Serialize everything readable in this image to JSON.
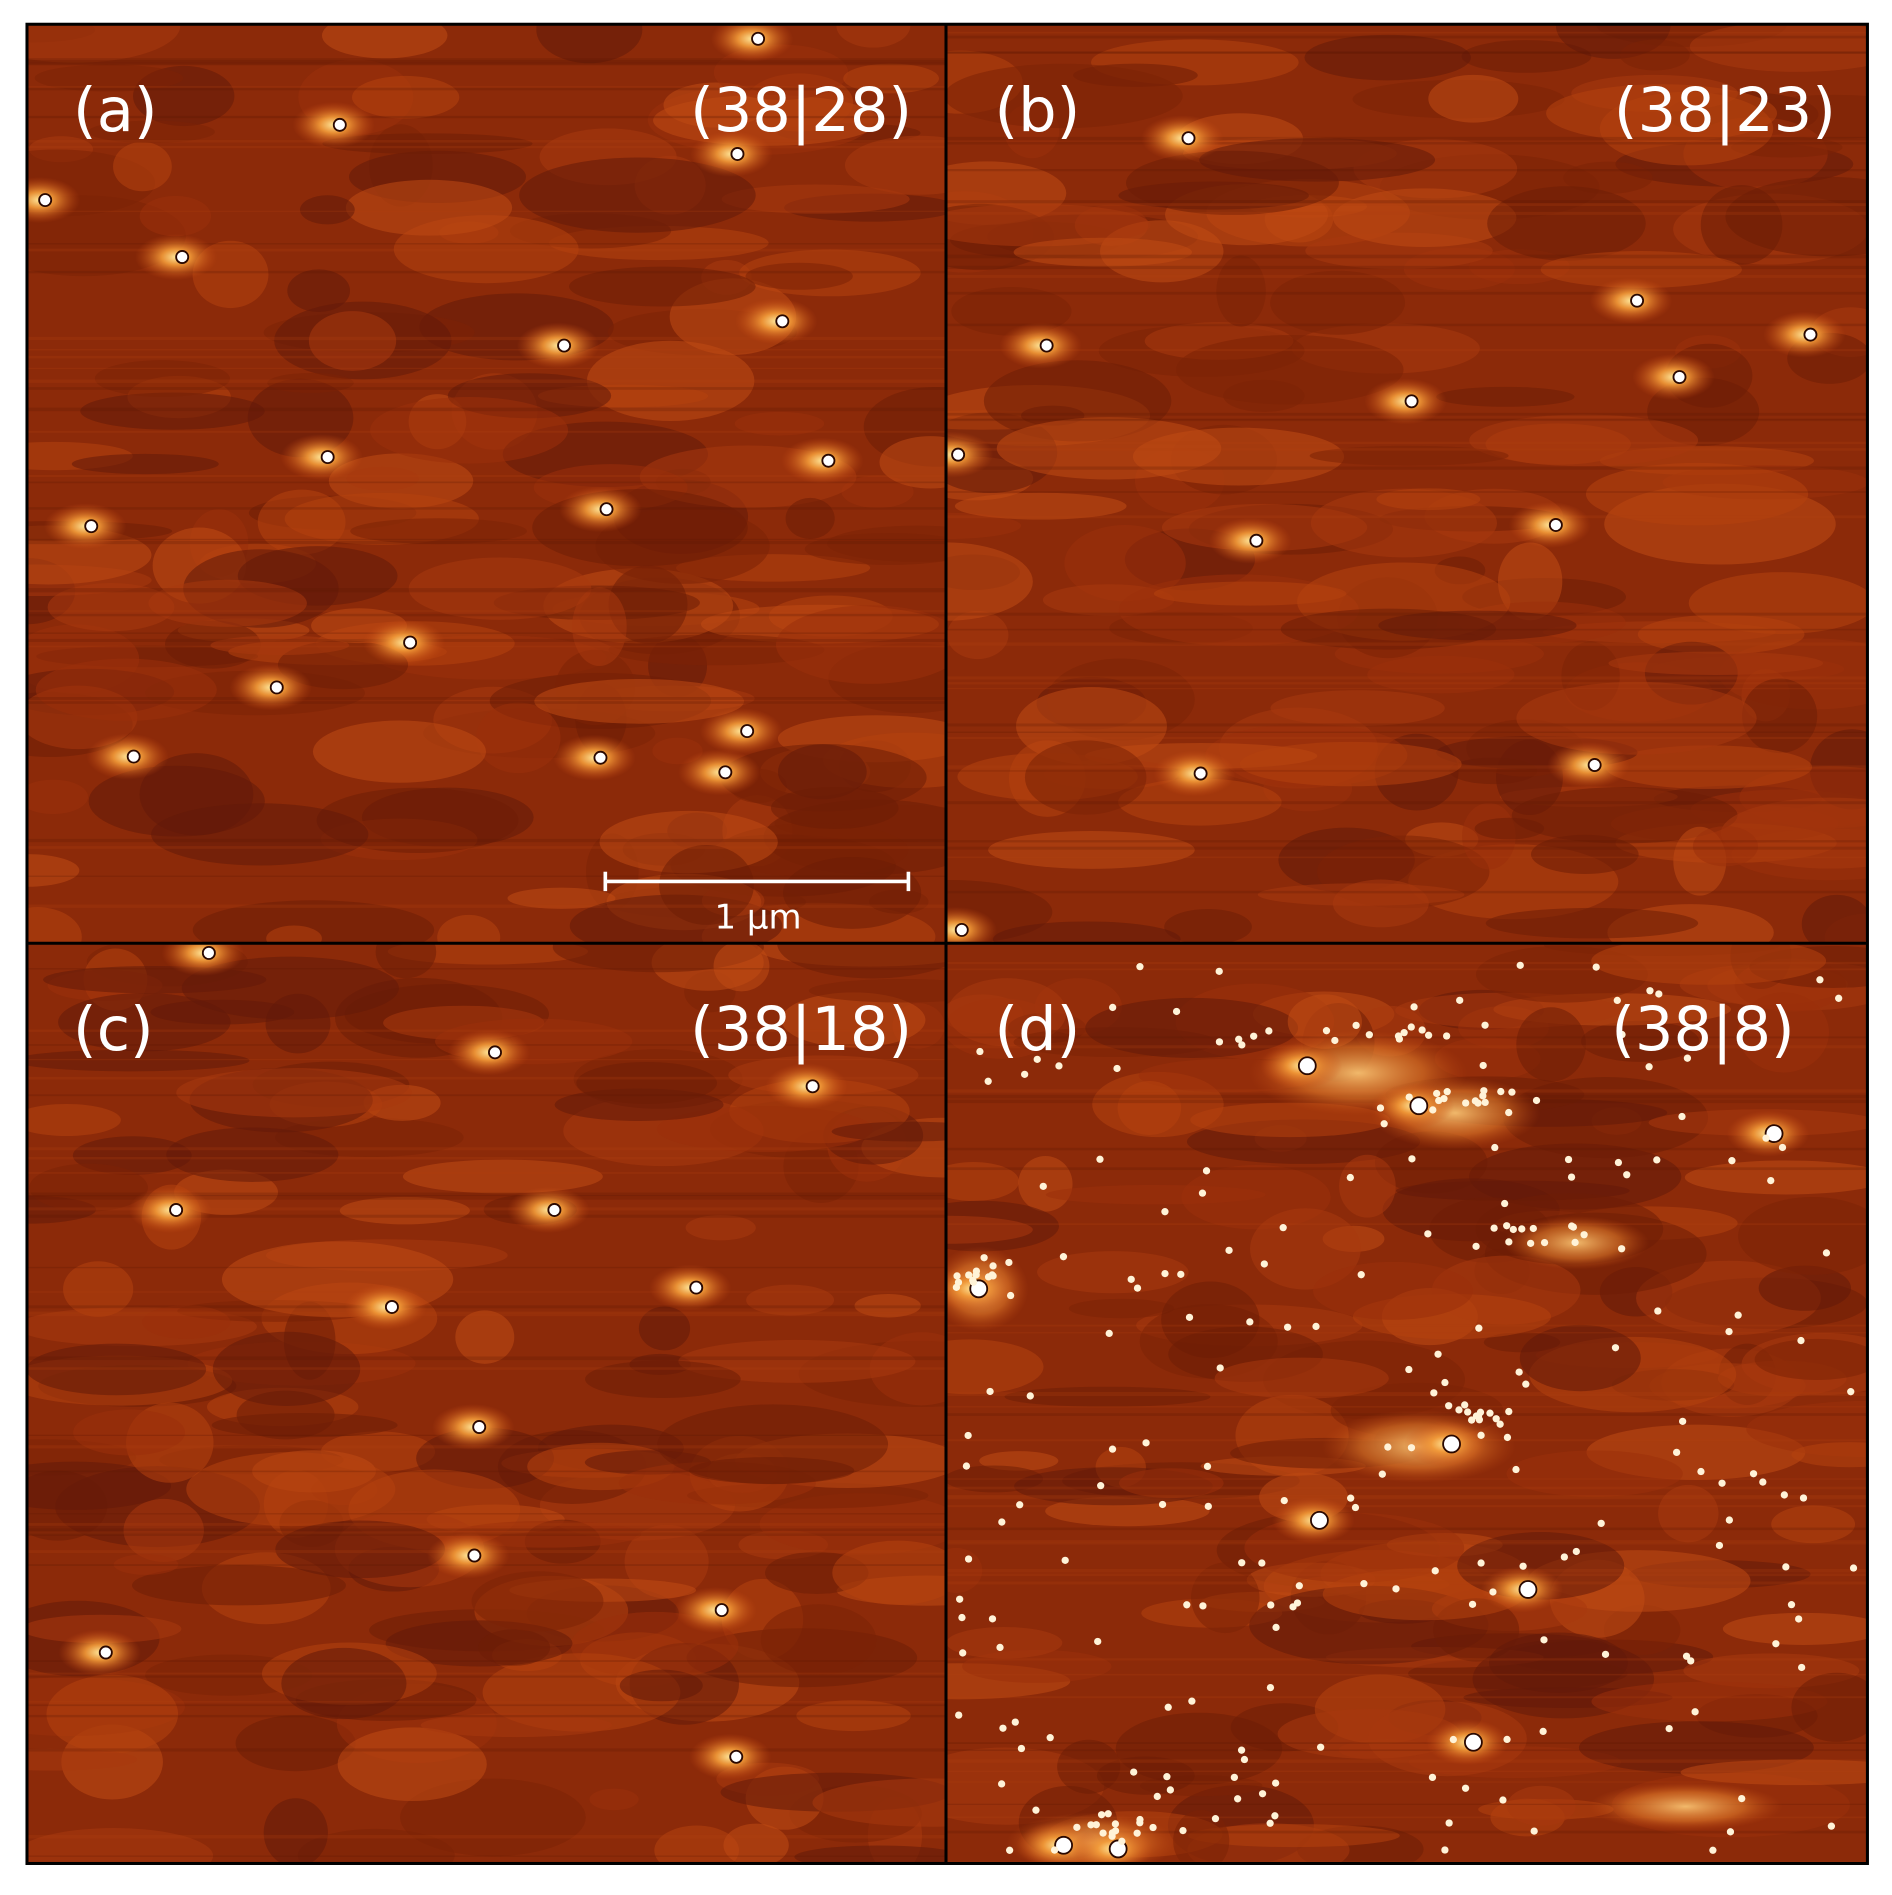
{
  "panels": [
    {
      "label": "(a)",
      "composition": "(38|28)"
    },
    {
      "label": "(b)",
      "composition": "(38|23)"
    },
    {
      "label": "(c)",
      "composition": "(38|18)"
    },
    {
      "label": "(d)",
      "composition": "(38|8)"
    }
  ],
  "scale_bar": {
    "label": "1 µm"
  }
}
